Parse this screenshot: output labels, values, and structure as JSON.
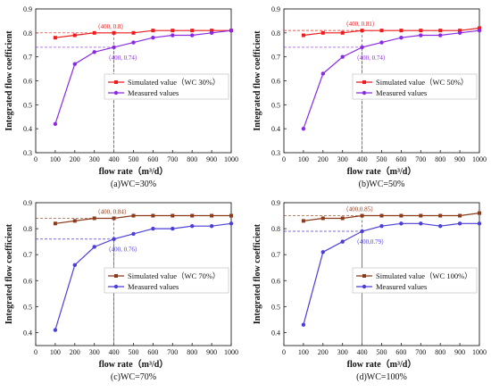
{
  "chart_data": [
    {
      "type": "line",
      "caption": "(a)WC=30%",
      "xlabel": "flow rate（m³/d）",
      "ylabel": "Integrated flow coefficient",
      "x": [
        100,
        200,
        300,
        400,
        500,
        600,
        700,
        800,
        900,
        1000
      ],
      "xlim": [
        0,
        1000
      ],
      "ylim": [
        0.3,
        0.9
      ],
      "xticks": [
        "0",
        "100",
        "200",
        "300",
        "400",
        "500",
        "600",
        "700",
        "800",
        "900",
        "1000"
      ],
      "yticks": [
        "0.3",
        "0.4",
        "0.5",
        "0.6",
        "0.7",
        "0.8",
        "0.9"
      ],
      "legend_position": "center-right",
      "series": [
        {
          "name": "Simulated value（WC 30%）",
          "color": "#ee1c1c",
          "values": [
            0.78,
            0.79,
            0.8,
            0.8,
            0.8,
            0.81,
            0.81,
            0.81,
            0.81,
            0.81
          ]
        },
        {
          "name": "Measured values",
          "color": "#8a2be2",
          "values": [
            0.42,
            0.67,
            0.72,
            0.74,
            0.76,
            0.78,
            0.79,
            0.79,
            0.8,
            0.81
          ]
        }
      ],
      "annotations": [
        {
          "text": "（400, 0.8）",
          "x": 400,
          "y": 0.8,
          "color": "#ee1c1c"
        },
        {
          "text": "（400, 0.74）",
          "x": 400,
          "y": 0.74,
          "color": "#8a2be2"
        }
      ]
    },
    {
      "type": "line",
      "caption": "(b)WC=50%",
      "xlabel": "flow rate（m³/d）",
      "ylabel": "Integrated flow coefficient",
      "x": [
        100,
        200,
        300,
        400,
        500,
        600,
        700,
        800,
        900,
        1000
      ],
      "xlim": [
        0,
        1000
      ],
      "ylim": [
        0.3,
        0.9
      ],
      "xticks": [
        "0",
        "100",
        "200",
        "300",
        "400",
        "500",
        "600",
        "700",
        "800",
        "900",
        "1000"
      ],
      "yticks": [
        "0.3",
        "0.4",
        "0.5",
        "0.6",
        "0.7",
        "0.8",
        "0.9"
      ],
      "legend_position": "center-right",
      "series": [
        {
          "name": "Simulated value（WC 50%）",
          "color": "#ee1c1c",
          "values": [
            0.79,
            0.8,
            0.8,
            0.81,
            0.81,
            0.81,
            0.81,
            0.81,
            0.81,
            0.82
          ]
        },
        {
          "name": "Measured values",
          "color": "#8a2be2",
          "values": [
            0.4,
            0.63,
            0.7,
            0.74,
            0.76,
            0.78,
            0.79,
            0.79,
            0.8,
            0.81
          ]
        }
      ],
      "annotations": [
        {
          "text": "（400, 0.81）",
          "x": 400,
          "y": 0.81,
          "color": "#ee1c1c"
        },
        {
          "text": "（400, 0.74）",
          "x": 400,
          "y": 0.74,
          "color": "#8a2be2"
        }
      ]
    },
    {
      "type": "line",
      "caption": "(c)WC=70%",
      "xlabel": "flow rate（m³/d）",
      "ylabel": "Integrated flow coefficient",
      "x": [
        100,
        200,
        300,
        400,
        500,
        600,
        700,
        800,
        900,
        1000
      ],
      "xlim": [
        0,
        1000
      ],
      "ylim": [
        0.35,
        0.9
      ],
      "xticks": [
        "0",
        "100",
        "200",
        "300",
        "400",
        "500",
        "600",
        "700",
        "800",
        "900",
        "1000"
      ],
      "yticks": [
        "0.4",
        "0.5",
        "0.6",
        "0.7",
        "0.8",
        "0.9"
      ],
      "legend_position": "center-right",
      "series": [
        {
          "name": "Simulated value（WC 70%）",
          "color": "#8b3a1a",
          "values": [
            0.82,
            0.83,
            0.84,
            0.84,
            0.85,
            0.85,
            0.85,
            0.85,
            0.85,
            0.85
          ]
        },
        {
          "name": "Measured values",
          "color": "#4b3fd6",
          "values": [
            0.41,
            0.66,
            0.73,
            0.76,
            0.78,
            0.8,
            0.8,
            0.81,
            0.81,
            0.82
          ]
        }
      ],
      "annotations": [
        {
          "text": "（400, 0.84）",
          "x": 400,
          "y": 0.84,
          "color": "#8b3a1a"
        },
        {
          "text": "（400, 0.76）",
          "x": 400,
          "y": 0.76,
          "color": "#4b3fd6"
        }
      ]
    },
    {
      "type": "line",
      "caption": "(d)WC=100%",
      "xlabel": "flow rate（m³/d）",
      "ylabel": "Integrated flow coefficient",
      "x": [
        100,
        200,
        300,
        400,
        500,
        600,
        700,
        800,
        900,
        1000
      ],
      "xlim": [
        0,
        1000
      ],
      "ylim": [
        0.35,
        0.9
      ],
      "xticks": [
        "0",
        "100",
        "200",
        "300",
        "400",
        "500",
        "600",
        "700",
        "800",
        "900",
        "1000"
      ],
      "yticks": [
        "0.4",
        "0.5",
        "0.6",
        "0.7",
        "0.8",
        "0.9"
      ],
      "legend_position": "center-right",
      "series": [
        {
          "name": "Simulated value（WC 100%）",
          "color": "#8b3a1a",
          "values": [
            0.83,
            0.84,
            0.84,
            0.85,
            0.85,
            0.85,
            0.85,
            0.85,
            0.85,
            0.86
          ]
        },
        {
          "name": "Measured values",
          "color": "#4b3fd6",
          "values": [
            0.43,
            0.71,
            0.75,
            0.79,
            0.81,
            0.82,
            0.82,
            0.81,
            0.82,
            0.82
          ]
        }
      ],
      "annotations": [
        {
          "text": "（400,0.85）",
          "x": 400,
          "y": 0.85,
          "color": "#8b3a1a"
        },
        {
          "text": "（400,0.79）",
          "x": 400,
          "y": 0.79,
          "color": "#4b3fd6"
        }
      ]
    }
  ]
}
